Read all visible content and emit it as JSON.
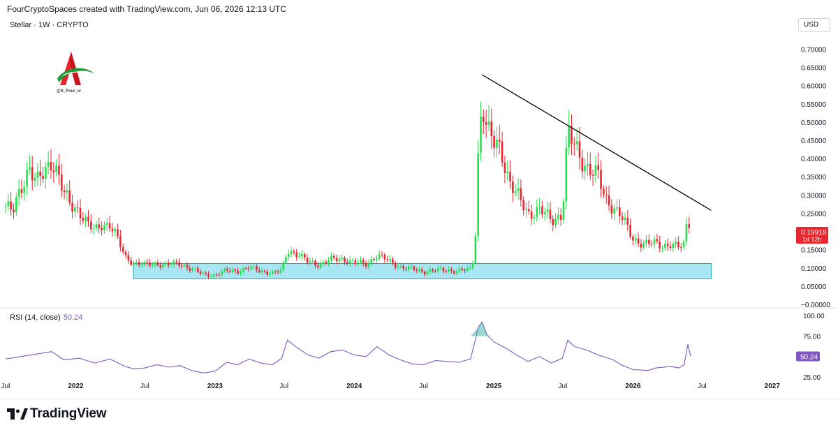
{
  "header": {
    "attribution": "FourCryptoSpaces created with TradingView.com, Jun 06, 2026 12:13 UTC"
  },
  "symbol": {
    "label": "Stellar · 1W · CRYPTO"
  },
  "currency": "USD",
  "watermark": {
    "handle": "@X_Four_iv"
  },
  "price_tag": {
    "price": "0.19918",
    "countdown": "1d 12h"
  },
  "rsi": {
    "label": "RSI (14, close)",
    "value": "50.24",
    "tag": "50.24"
  },
  "brand": {
    "name": "TradingView"
  },
  "colors": {
    "up": "#26e04a",
    "down": "#e8262e",
    "rsi": "#7e57c2",
    "zone": "#a9e6f3",
    "zone_border": "#1aa8b8",
    "trend": "#000000"
  },
  "chart_data": [
    {
      "type": "candlestick",
      "title": "Stellar · 1W · CRYPTO",
      "y_unit": "USD",
      "ylim": [
        0.0,
        0.72
      ],
      "y_ticks": [
        "0.70000",
        "0.65000",
        "0.60000",
        "0.55000",
        "0.50000",
        "0.45000",
        "0.40000",
        "0.35000",
        "0.30000",
        "0.25000",
        "0.20000",
        "0.15000",
        "0.10000",
        "0.05000",
        "−0.00000"
      ],
      "y_tick_values": [
        0.7,
        0.65,
        0.6,
        0.55,
        0.5,
        0.45,
        0.4,
        0.35,
        0.3,
        0.25,
        0.2,
        0.15,
        0.1,
        0.05,
        0.0
      ],
      "x_ticks": [
        "Jul",
        "2022",
        "Jul",
        "2023",
        "Jul",
        "2024",
        "Jul",
        "2025",
        "Jul",
        "2026",
        "Jul",
        "2027"
      ],
      "x_tick_dates": [
        "2021-07-01",
        "2022-01-01",
        "2022-07-01",
        "2023-01-01",
        "2023-07-01",
        "2024-01-01",
        "2024-07-01",
        "2025-01-01",
        "2025-07-01",
        "2026-01-01",
        "2026-07-01",
        "2027-01-01"
      ],
      "x_range": [
        "2021-07-01",
        "2027-03-01"
      ],
      "series_points": [
        [
          "2021-07-01",
          0.27
        ],
        [
          "2021-07-20",
          0.25
        ],
        [
          "2021-08-10",
          0.32
        ],
        [
          "2021-09-01",
          0.38
        ],
        [
          "2021-09-20",
          0.33
        ],
        [
          "2021-10-10",
          0.36
        ],
        [
          "2021-10-30",
          0.4
        ],
        [
          "2021-11-15",
          0.36
        ],
        [
          "2021-12-01",
          0.3
        ],
        [
          "2021-12-20",
          0.27
        ],
        [
          "2022-01-10",
          0.26
        ],
        [
          "2022-02-01",
          0.22
        ],
        [
          "2022-02-20",
          0.2
        ],
        [
          "2022-03-10",
          0.22
        ],
        [
          "2022-04-01",
          0.22
        ],
        [
          "2022-04-20",
          0.18
        ],
        [
          "2022-05-10",
          0.13
        ],
        [
          "2022-06-01",
          0.115
        ],
        [
          "2022-07-01",
          0.108
        ],
        [
          "2022-08-01",
          0.112
        ],
        [
          "2022-09-01",
          0.108
        ],
        [
          "2022-10-01",
          0.112
        ],
        [
          "2022-11-01",
          0.097
        ],
        [
          "2022-12-01",
          0.082
        ],
        [
          "2023-01-01",
          0.08
        ],
        [
          "2023-02-01",
          0.092
        ],
        [
          "2023-03-01",
          0.092
        ],
        [
          "2023-04-01",
          0.1
        ],
        [
          "2023-05-01",
          0.092
        ],
        [
          "2023-06-01",
          0.085
        ],
        [
          "2023-06-25",
          0.092
        ],
        [
          "2023-07-10",
          0.15
        ],
        [
          "2023-08-01",
          0.14
        ],
        [
          "2023-09-01",
          0.117
        ],
        [
          "2023-10-01",
          0.11
        ],
        [
          "2023-11-01",
          0.122
        ],
        [
          "2023-12-01",
          0.125
        ],
        [
          "2024-01-01",
          0.115
        ],
        [
          "2024-02-01",
          0.11
        ],
        [
          "2024-03-01",
          0.135
        ],
        [
          "2024-04-01",
          0.118
        ],
        [
          "2024-05-01",
          0.103
        ],
        [
          "2024-06-01",
          0.096
        ],
        [
          "2024-07-01",
          0.09
        ],
        [
          "2024-08-01",
          0.093
        ],
        [
          "2024-09-01",
          0.094
        ],
        [
          "2024-10-01",
          0.092
        ],
        [
          "2024-11-01",
          0.095
        ],
        [
          "2024-11-12",
          0.14
        ],
        [
          "2024-11-22",
          0.44
        ],
        [
          "2024-12-01",
          0.56
        ],
        [
          "2024-12-15",
          0.47
        ],
        [
          "2025-01-01",
          0.44
        ],
        [
          "2025-01-20",
          0.43
        ],
        [
          "2025-02-10",
          0.34
        ],
        [
          "2025-03-01",
          0.3
        ],
        [
          "2025-04-01",
          0.25
        ],
        [
          "2025-05-01",
          0.26
        ],
        [
          "2025-06-01",
          0.23
        ],
        [
          "2025-06-30",
          0.25
        ],
        [
          "2025-07-14",
          0.47
        ],
        [
          "2025-08-01",
          0.43
        ],
        [
          "2025-09-01",
          0.38
        ],
        [
          "2025-10-01",
          0.35
        ],
        [
          "2025-10-20",
          0.29
        ],
        [
          "2025-11-10",
          0.27
        ],
        [
          "2025-12-01",
          0.24
        ],
        [
          "2026-01-01",
          0.18
        ],
        [
          "2026-01-20",
          0.17
        ],
        [
          "2026-02-10",
          0.165
        ],
        [
          "2026-03-01",
          0.168
        ],
        [
          "2026-03-20",
          0.162
        ],
        [
          "2026-04-10",
          0.165
        ],
        [
          "2026-05-01",
          0.155
        ],
        [
          "2026-05-15",
          0.165
        ],
        [
          "2026-05-25",
          0.25
        ],
        [
          "2026-06-01",
          0.199
        ]
      ],
      "annotations": {
        "demand_zone": {
          "x0": "2022-06-01",
          "x1": "2026-07-25",
          "y0": 0.07,
          "y1": 0.112
        },
        "trendline": {
          "from": [
            "2024-12-01",
            0.63
          ],
          "to": [
            "2026-07-25",
            0.258
          ]
        }
      }
    },
    {
      "type": "line",
      "title": "RSI (14, close)",
      "y_ticks": [
        "100.00",
        "75.00",
        "50.24",
        "25.00"
      ],
      "ylim": [
        20,
        100
      ],
      "series_points": [
        [
          "2021-07-01",
          47
        ],
        [
          "2021-08-10",
          50
        ],
        [
          "2021-09-20",
          53
        ],
        [
          "2021-10-30",
          56
        ],
        [
          "2021-12-01",
          46
        ],
        [
          "2022-01-10",
          48
        ],
        [
          "2022-02-20",
          42
        ],
        [
          "2022-04-01",
          47
        ],
        [
          "2022-05-10",
          38
        ],
        [
          "2022-06-01",
          35
        ],
        [
          "2022-07-01",
          36
        ],
        [
          "2022-08-01",
          40
        ],
        [
          "2022-09-01",
          37
        ],
        [
          "2022-10-01",
          39
        ],
        [
          "2022-11-01",
          33
        ],
        [
          "2022-12-01",
          30
        ],
        [
          "2023-01-01",
          32
        ],
        [
          "2023-02-01",
          43
        ],
        [
          "2023-03-01",
          40
        ],
        [
          "2023-04-01",
          47
        ],
        [
          "2023-05-01",
          42
        ],
        [
          "2023-06-01",
          40
        ],
        [
          "2023-06-25",
          48
        ],
        [
          "2023-07-10",
          70
        ],
        [
          "2023-08-01",
          62
        ],
        [
          "2023-09-01",
          52
        ],
        [
          "2023-10-01",
          48
        ],
        [
          "2023-11-01",
          56
        ],
        [
          "2023-12-01",
          58
        ],
        [
          "2024-01-01",
          52
        ],
        [
          "2024-02-01",
          50
        ],
        [
          "2024-03-01",
          62
        ],
        [
          "2024-04-01",
          52
        ],
        [
          "2024-05-01",
          46
        ],
        [
          "2024-06-01",
          41
        ],
        [
          "2024-07-01",
          40
        ],
        [
          "2024-08-01",
          45
        ],
        [
          "2024-09-01",
          44
        ],
        [
          "2024-10-01",
          43
        ],
        [
          "2024-11-01",
          47
        ],
        [
          "2024-11-22",
          86
        ],
        [
          "2024-12-01",
          92
        ],
        [
          "2024-12-15",
          76
        ],
        [
          "2025-01-01",
          68
        ],
        [
          "2025-02-10",
          58
        ],
        [
          "2025-03-01",
          52
        ],
        [
          "2025-04-01",
          44
        ],
        [
          "2025-05-01",
          50
        ],
        [
          "2025-06-01",
          42
        ],
        [
          "2025-06-30",
          48
        ],
        [
          "2025-07-14",
          70
        ],
        [
          "2025-08-01",
          62
        ],
        [
          "2025-09-01",
          58
        ],
        [
          "2025-10-01",
          52
        ],
        [
          "2025-11-10",
          46
        ],
        [
          "2025-12-01",
          40
        ],
        [
          "2026-01-01",
          34
        ],
        [
          "2026-02-10",
          33
        ],
        [
          "2026-03-01",
          36
        ],
        [
          "2026-04-10",
          38
        ],
        [
          "2026-05-01",
          36
        ],
        [
          "2026-05-15",
          40
        ],
        [
          "2026-05-25",
          65
        ],
        [
          "2026-06-01",
          50.24
        ]
      ]
    }
  ]
}
